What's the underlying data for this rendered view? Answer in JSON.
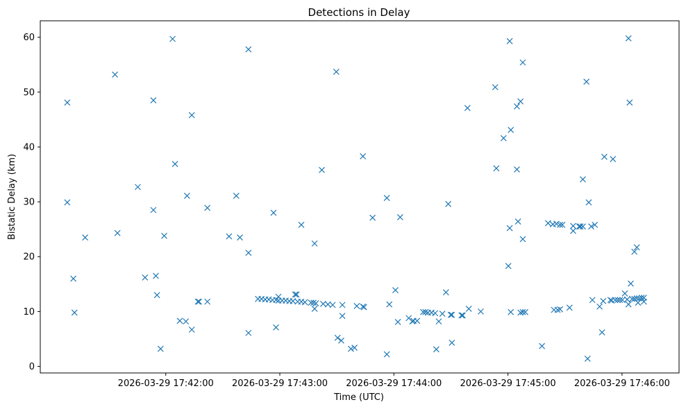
{
  "chart_data": {
    "type": "scatter",
    "title": "Detections in Delay",
    "xlabel": "Time (UTC)",
    "ylabel": "Bistatic Delay (km)",
    "marker": "x",
    "color": "#1f77b4",
    "grid": false,
    "legend": false,
    "x_unit": "HH:MM:SS on 2026-03-29 UTC",
    "xlim": [
      "17:40:54",
      "17:46:30"
    ],
    "ylim": [
      -1.2,
      63
    ],
    "x_ticks": [
      {
        "value": "17:42:00",
        "label": "2026-03-29 17:42:00"
      },
      {
        "value": "17:43:00",
        "label": "2026-03-29 17:43:00"
      },
      {
        "value": "17:44:00",
        "label": "2026-03-29 17:44:00"
      },
      {
        "value": "17:45:00",
        "label": "2026-03-29 17:45:00"
      },
      {
        "value": "17:46:00",
        "label": "2026-03-29 17:46:00"
      }
    ],
    "y_ticks": [
      0,
      10,
      20,
      30,
      40,
      50,
      60
    ],
    "points": [
      [
        "17:41:08.2",
        48.1
      ],
      [
        "17:41:08.2",
        29.9
      ],
      [
        "17:41:11.4",
        16.0
      ],
      [
        "17:41:12.0",
        9.8
      ],
      [
        "17:41:17.6",
        23.5
      ],
      [
        "17:41:33.3",
        53.2
      ],
      [
        "17:41:34.6",
        24.3
      ],
      [
        "17:41:45.3",
        32.7
      ],
      [
        "17:41:49.1",
        16.2
      ],
      [
        "17:41:53.5",
        48.5
      ],
      [
        "17:41:53.5",
        28.5
      ],
      [
        "17:41:54.8",
        16.5
      ],
      [
        "17:41:55.4",
        13.0
      ],
      [
        "17:41:57.3",
        3.2
      ],
      [
        "17:41:59.2",
        23.8
      ],
      [
        "17:42:03.6",
        59.7
      ],
      [
        "17:42:04.9",
        36.9
      ],
      [
        "17:42:07.4",
        8.3
      ],
      [
        "17:42:10.6",
        8.2
      ],
      [
        "17:42:11.2",
        31.1
      ],
      [
        "17:42:13.7",
        6.7
      ],
      [
        "17:42:13.7",
        45.8
      ],
      [
        "17:42:16.9",
        11.8
      ],
      [
        "17:42:17.5",
        11.8
      ],
      [
        "17:42:21.9",
        28.9
      ],
      [
        "17:42:21.9",
        11.8
      ],
      [
        "17:42:33.3",
        23.7
      ],
      [
        "17:42:37.1",
        31.1
      ],
      [
        "17:42:39.0",
        23.5
      ],
      [
        "17:42:43.5",
        20.7
      ],
      [
        "17:42:43.5",
        57.8
      ],
      [
        "17:42:43.5",
        6.1
      ],
      [
        "17:42:48.5",
        12.3
      ],
      [
        "17:42:50.4",
        12.3
      ],
      [
        "17:42:52.3",
        12.2
      ],
      [
        "17:42:54.2",
        12.2
      ],
      [
        "17:42:56.1",
        12.1
      ],
      [
        "17:42:56.7",
        28.0
      ],
      [
        "17:42:58.0",
        12.1
      ],
      [
        "17:42:58.0",
        7.1
      ],
      [
        "17:42:59.3",
        12.0
      ],
      [
        "17:42:59.3",
        12.7
      ],
      [
        "17:43:01.2",
        12.0
      ],
      [
        "17:43:03.1",
        12.0
      ],
      [
        "17:43:05.0",
        11.9
      ],
      [
        "17:43:06.9",
        11.9
      ],
      [
        "17:43:08.1",
        13.1
      ],
      [
        "17:43:08.8",
        13.1
      ],
      [
        "17:43:09.4",
        11.8
      ],
      [
        "17:43:11.3",
        11.8
      ],
      [
        "17:43:11.3",
        25.8
      ],
      [
        "17:43:13.2",
        11.7
      ],
      [
        "17:43:16.4",
        11.6
      ],
      [
        "17:43:17.7",
        11.6
      ],
      [
        "17:43:18.3",
        10.5
      ],
      [
        "17:43:18.3",
        22.4
      ],
      [
        "17:43:19.0",
        11.5
      ],
      [
        "17:43:22.1",
        35.8
      ],
      [
        "17:43:22.8",
        11.4
      ],
      [
        "17:43:25.3",
        11.3
      ],
      [
        "17:43:27.8",
        11.2
      ],
      [
        "17:43:29.7",
        53.7
      ],
      [
        "17:43:30.4",
        5.2
      ],
      [
        "17:43:32.3",
        4.7
      ],
      [
        "17:43:32.9",
        9.2
      ],
      [
        "17:43:32.9",
        11.2
      ],
      [
        "17:43:37.4",
        3.2
      ],
      [
        "17:43:39.3",
        3.4
      ],
      [
        "17:43:40.5",
        11.0
      ],
      [
        "17:43:43.7",
        38.3
      ],
      [
        "17:43:43.7",
        10.9
      ],
      [
        "17:43:44.3",
        10.8
      ],
      [
        "17:43:48.8",
        27.1
      ],
      [
        "17:43:56.3",
        30.7
      ],
      [
        "17:43:56.3",
        2.2
      ],
      [
        "17:43:57.6",
        11.3
      ],
      [
        "17:44:00.8",
        13.9
      ],
      [
        "17:44:02.1",
        8.1
      ],
      [
        "17:44:03.3",
        27.2
      ],
      [
        "17:44:07.8",
        8.8
      ],
      [
        "17:44:09.7",
        8.2
      ],
      [
        "17:44:10.3",
        8.3
      ],
      [
        "17:44:12.2",
        8.3
      ],
      [
        "17:44:15.4",
        9.9
      ],
      [
        "17:44:16.6",
        9.9
      ],
      [
        "17:44:17.9",
        9.8
      ],
      [
        "17:44:19.8",
        9.8
      ],
      [
        "17:44:21.7",
        9.7
      ],
      [
        "17:44:22.3",
        3.1
      ],
      [
        "17:44:23.6",
        8.2
      ],
      [
        "17:44:25.5",
        9.6
      ],
      [
        "17:44:27.4",
        13.5
      ],
      [
        "17:44:28.6",
        29.6
      ],
      [
        "17:44:29.9",
        9.4
      ],
      [
        "17:44:30.5",
        9.4
      ],
      [
        "17:44:30.5",
        4.3
      ],
      [
        "17:44:35.6",
        9.3
      ],
      [
        "17:44:36.2",
        9.3
      ],
      [
        "17:44:38.7",
        47.1
      ],
      [
        "17:44:39.4",
        10.5
      ],
      [
        "17:44:45.7",
        10.0
      ],
      [
        "17:44:53.3",
        50.9
      ],
      [
        "17:44:53.9",
        36.1
      ],
      [
        "17:44:57.7",
        41.6
      ],
      [
        "17:45:00.9",
        59.3
      ],
      [
        "17:45:00.2",
        18.3
      ],
      [
        "17:45:00.9",
        25.2
      ],
      [
        "17:45:01.5",
        43.1
      ],
      [
        "17:45:01.5",
        9.9
      ],
      [
        "17:45:04.7",
        47.4
      ],
      [
        "17:45:04.7",
        35.9
      ],
      [
        "17:45:05.3",
        26.4
      ],
      [
        "17:45:06.6",
        48.3
      ],
      [
        "17:45:06.6",
        9.8
      ],
      [
        "17:45:07.8",
        55.4
      ],
      [
        "17:45:07.8",
        23.2
      ],
      [
        "17:45:07.8",
        9.9
      ],
      [
        "17:45:09.1",
        9.9
      ],
      [
        "17:45:17.9",
        3.7
      ],
      [
        "17:45:21.1",
        26.1
      ],
      [
        "17:45:23.6",
        25.9
      ],
      [
        "17:45:24.2",
        10.3
      ],
      [
        "17:45:25.5",
        26.0
      ],
      [
        "17:45:26.1",
        10.3
      ],
      [
        "17:45:27.4",
        25.8
      ],
      [
        "17:45:27.4",
        10.4
      ],
      [
        "17:45:28.6",
        25.8
      ],
      [
        "17:45:32.4",
        10.7
      ],
      [
        "17:45:34.3",
        25.6
      ],
      [
        "17:45:34.3",
        24.7
      ],
      [
        "17:45:37.5",
        25.5
      ],
      [
        "17:45:38.1",
        25.5
      ],
      [
        "17:45:39.4",
        25.5
      ],
      [
        "17:45:39.4",
        34.1
      ],
      [
        "17:45:41.3",
        51.9
      ],
      [
        "17:45:41.9",
        1.4
      ],
      [
        "17:45:42.5",
        29.9
      ],
      [
        "17:45:43.8",
        25.5
      ],
      [
        "17:45:44.4",
        12.1
      ],
      [
        "17:45:45.7",
        25.8
      ],
      [
        "17:45:48.2",
        10.9
      ],
      [
        "17:45:49.5",
        6.2
      ],
      [
        "17:45:50.1",
        11.9
      ],
      [
        "17:45:50.7",
        38.2
      ],
      [
        "17:45:53.9",
        12.1
      ],
      [
        "17:45:54.5",
        12.0
      ],
      [
        "17:45:55.2",
        37.8
      ],
      [
        "17:45:56.4",
        12.1
      ],
      [
        "17:45:57.7",
        12.1
      ],
      [
        "17:45:58.9",
        12.1
      ],
      [
        "17:46:00.2",
        12.1
      ],
      [
        "17:46:01.5",
        13.3
      ],
      [
        "17:46:02.7",
        12.2
      ],
      [
        "17:46:03.4",
        59.8
      ],
      [
        "17:46:03.4",
        11.3
      ],
      [
        "17:46:04.0",
        48.1
      ],
      [
        "17:46:04.6",
        15.1
      ],
      [
        "17:46:05.3",
        12.3
      ],
      [
        "17:46:06.5",
        20.9
      ],
      [
        "17:46:06.5",
        12.3
      ],
      [
        "17:46:07.8",
        21.7
      ],
      [
        "17:46:07.8",
        12.4
      ],
      [
        "17:46:08.4",
        11.6
      ],
      [
        "17:46:09.0",
        12.4
      ],
      [
        "17:46:10.3",
        12.5
      ],
      [
        "17:46:11.5",
        12.5
      ],
      [
        "17:46:11.5",
        11.8
      ]
    ]
  }
}
